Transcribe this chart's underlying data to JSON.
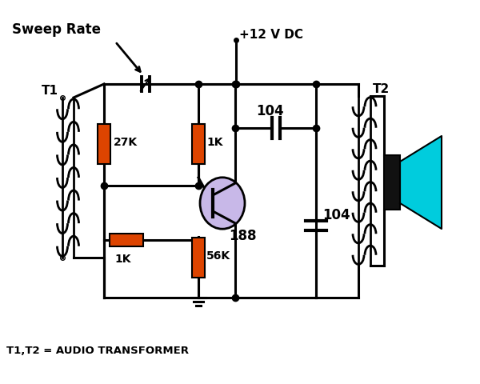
{
  "bg_color": "#ffffff",
  "labels": {
    "sweep_rate": "Sweep Rate",
    "vcc": "+12 V DC",
    "r27k": "27K",
    "r1k_top": "1K",
    "r1k_bot": "1K",
    "r56k": "56K",
    "c104_top": "104",
    "c104_bot": "104",
    "t188": "188",
    "t1": "T1",
    "t2": "T2",
    "footer": "T1,T2 = AUDIO TRANSFORMER"
  },
  "colors": {
    "resistor": "#dd4400",
    "transistor_body": "#c8b8e8",
    "speaker_cone": "#00ccdd",
    "speaker_body": "#111111",
    "wire": "#000000"
  },
  "lw": 2.2
}
